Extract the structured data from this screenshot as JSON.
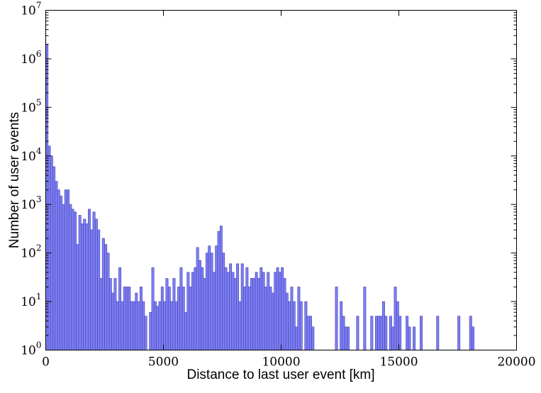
{
  "chart_data": {
    "type": "bar",
    "subtype": "histogram",
    "title": "",
    "xlabel": "Distance to last user event [km]",
    "ylabel": "Number of user events",
    "xlim": [
      0,
      20000
    ],
    "ylim": [
      1,
      10000000
    ],
    "yscale": "log",
    "grid": false,
    "legend": "none",
    "bar_color": "#7f7ff2",
    "bar_edge_color": "#4040b8",
    "bin_width": 100,
    "x_ticks": [
      {
        "value": 0,
        "label": "0"
      },
      {
        "value": 5000,
        "label": "5000"
      },
      {
        "value": 10000,
        "label": "10000"
      },
      {
        "value": 15000,
        "label": "15000"
      },
      {
        "value": 20000,
        "label": "20000"
      }
    ],
    "y_ticks": [
      {
        "value": 1,
        "base": "10",
        "exp": "0"
      },
      {
        "value": 10,
        "base": "10",
        "exp": "1"
      },
      {
        "value": 100,
        "base": "10",
        "exp": "2"
      },
      {
        "value": 1000,
        "base": "10",
        "exp": "3"
      },
      {
        "value": 10000,
        "base": "10",
        "exp": "4"
      },
      {
        "value": 100000,
        "base": "10",
        "exp": "5"
      },
      {
        "value": 1000000,
        "base": "10",
        "exp": "6"
      },
      {
        "value": 10000000,
        "base": "10",
        "exp": "7"
      }
    ],
    "values": [
      2000000,
      16000,
      10000,
      6000,
      3000,
      2000,
      1500,
      1000,
      2000,
      2000,
      1000,
      800,
      700,
      150,
      600,
      400,
      500,
      400,
      800,
      300,
      700,
      500,
      300,
      30,
      200,
      150,
      100,
      30,
      15,
      30,
      10,
      50,
      10,
      20,
      20,
      20,
      10,
      10,
      15,
      10,
      20,
      10,
      5,
      1,
      6,
      50,
      10,
      8,
      10,
      20,
      10,
      30,
      20,
      10,
      30,
      10,
      20,
      50,
      20,
      6,
      40,
      20,
      40,
      50,
      130,
      70,
      50,
      30,
      100,
      140,
      100,
      40,
      140,
      280,
      360,
      100,
      50,
      40,
      60,
      40,
      30,
      60,
      10,
      60,
      20,
      50,
      20,
      30,
      30,
      40,
      30,
      50,
      40,
      20,
      40,
      20,
      15,
      40,
      50,
      40,
      50,
      30,
      15,
      10,
      20,
      10,
      3,
      20,
      10,
      1,
      10,
      5,
      5,
      3,
      1,
      1,
      1,
      1,
      1,
      1,
      1,
      1,
      1,
      20,
      1,
      10,
      5,
      3,
      3,
      1,
      1,
      1,
      5,
      1,
      1,
      20,
      1,
      1,
      5,
      1,
      5,
      5,
      5,
      10,
      5,
      1,
      5,
      3,
      20,
      10,
      5,
      1,
      1,
      5,
      3,
      1,
      3,
      1,
      1,
      5,
      1,
      1,
      1,
      1,
      1,
      1,
      5,
      1,
      1,
      1,
      1,
      1,
      1,
      1,
      1,
      5,
      1,
      1,
      1,
      1,
      5,
      3
    ]
  }
}
